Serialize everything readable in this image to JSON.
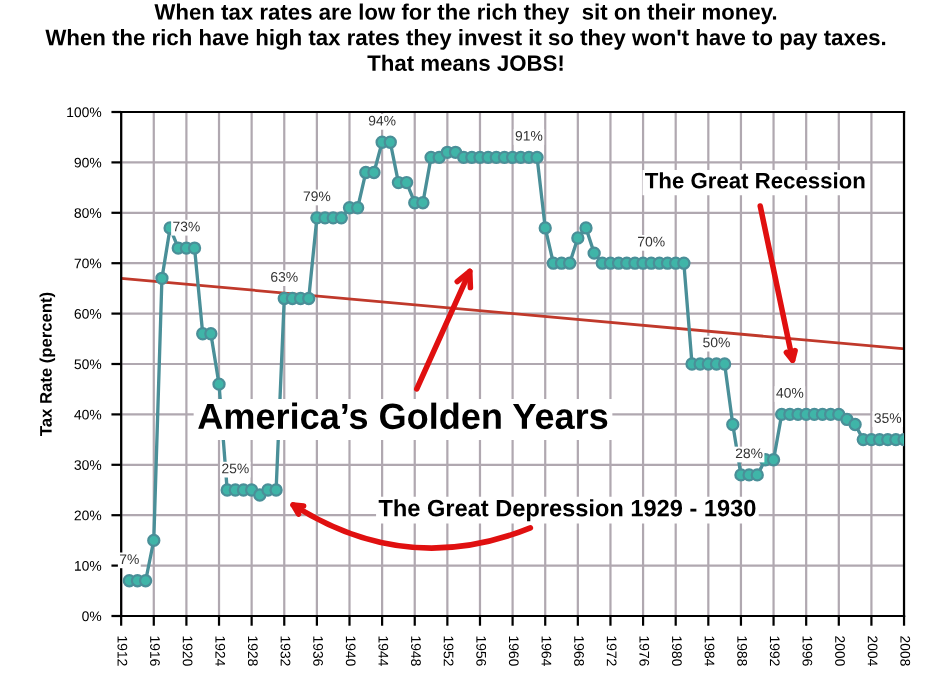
{
  "chart_data": {
    "type": "line",
    "title": "When tax rates are low for the rich they  sit on their money.\nWhen the rich have high tax rates they invest it so they won't have to pay taxes.\nThat means JOBS!",
    "ylabel": "Tax Rate (percent)",
    "x": [
      1913,
      1914,
      1915,
      1916,
      1917,
      1918,
      1919,
      1920,
      1921,
      1922,
      1923,
      1924,
      1925,
      1926,
      1927,
      1928,
      1929,
      1930,
      1931,
      1932,
      1933,
      1934,
      1935,
      1936,
      1937,
      1938,
      1939,
      1940,
      1941,
      1942,
      1943,
      1944,
      1945,
      1946,
      1947,
      1948,
      1949,
      1950,
      1951,
      1952,
      1953,
      1954,
      1955,
      1956,
      1957,
      1958,
      1959,
      1960,
      1961,
      1962,
      1963,
      1964,
      1965,
      1966,
      1967,
      1968,
      1969,
      1970,
      1971,
      1972,
      1973,
      1974,
      1975,
      1976,
      1977,
      1978,
      1979,
      1980,
      1981,
      1982,
      1983,
      1984,
      1985,
      1986,
      1987,
      1988,
      1989,
      1990,
      1991,
      1992,
      1993,
      1994,
      1995,
      1996,
      1997,
      1998,
      1999,
      2000,
      2001,
      2002,
      2003,
      2004,
      2005,
      2006,
      2007,
      2008
    ],
    "series": [
      {
        "color": "#4a8f98",
        "marker": "circle",
        "values": [
          7,
          7,
          7,
          15,
          67,
          77,
          73,
          73,
          73,
          56,
          56,
          46,
          25,
          25,
          25,
          25,
          24,
          25,
          25,
          63,
          63,
          63,
          63,
          79,
          79,
          79,
          79,
          81,
          81,
          88,
          88,
          94,
          94,
          86,
          86,
          82,
          82,
          91,
          91,
          92,
          92,
          91,
          91,
          91,
          91,
          91,
          91,
          91,
          91,
          91,
          91,
          77,
          70,
          70,
          70,
          75,
          77,
          72,
          70,
          70,
          70,
          70,
          70,
          70,
          70,
          70,
          70,
          70,
          70,
          50,
          50,
          50,
          50,
          50,
          38,
          28,
          28,
          28,
          31,
          31,
          40,
          40,
          40,
          40,
          40,
          40,
          40,
          40,
          39,
          38,
          35,
          35,
          35,
          35,
          35,
          35
        ],
        "value_labels": [
          "7%",
          null,
          null,
          null,
          null,
          null,
          null,
          "73%",
          null,
          null,
          null,
          null,
          null,
          "25%",
          null,
          null,
          null,
          null,
          null,
          "63%",
          null,
          null,
          null,
          "79%",
          null,
          null,
          null,
          null,
          null,
          null,
          null,
          "94%",
          null,
          null,
          null,
          null,
          null,
          null,
          null,
          null,
          null,
          null,
          null,
          null,
          null,
          null,
          null,
          null,
          null,
          "91%",
          null,
          null,
          null,
          null,
          null,
          null,
          null,
          null,
          null,
          null,
          null,
          null,
          null,
          null,
          "70%",
          null,
          null,
          null,
          null,
          null,
          null,
          null,
          "50%",
          null,
          null,
          null,
          "28%",
          null,
          null,
          null,
          null,
          "40%",
          null,
          null,
          null,
          null,
          null,
          null,
          null,
          null,
          null,
          null,
          null,
          "35%",
          null,
          null
        ]
      },
      {
        "type": "line",
        "x": [
          1912,
          2008
        ],
        "values": [
          67,
          53
        ],
        "color": "#c0392b",
        "marker": "none"
      }
    ],
    "xlim": [
      1912,
      2008
    ],
    "xticks": [
      1912,
      1916,
      1920,
      1924,
      1928,
      1932,
      1936,
      1940,
      1944,
      1948,
      1952,
      1956,
      1960,
      1964,
      1968,
      1972,
      1976,
      1980,
      1984,
      1988,
      1992,
      1996,
      2000,
      2004,
      2008
    ],
    "ylim": [
      0,
      100
    ],
    "yticks": [
      {
        "value": 0,
        "label": "0%"
      },
      {
        "value": 10,
        "label": "10%"
      },
      {
        "value": 20,
        "label": "20%"
      },
      {
        "value": 30,
        "label": "30%"
      },
      {
        "value": 40,
        "label": "40%"
      },
      {
        "value": 50,
        "label": "50%"
      },
      {
        "value": 60,
        "label": "60%"
      },
      {
        "value": 70,
        "label": "70%"
      },
      {
        "value": 80,
        "label": "80%"
      },
      {
        "value": 90,
        "label": "90%"
      },
      {
        "value": 100,
        "label": "100%"
      }
    ],
    "grid": true,
    "legend": false,
    "annotations": [
      "America’s Golden Years",
      "The Great Depression 1929 - 1930",
      "The Great Recession"
    ]
  }
}
